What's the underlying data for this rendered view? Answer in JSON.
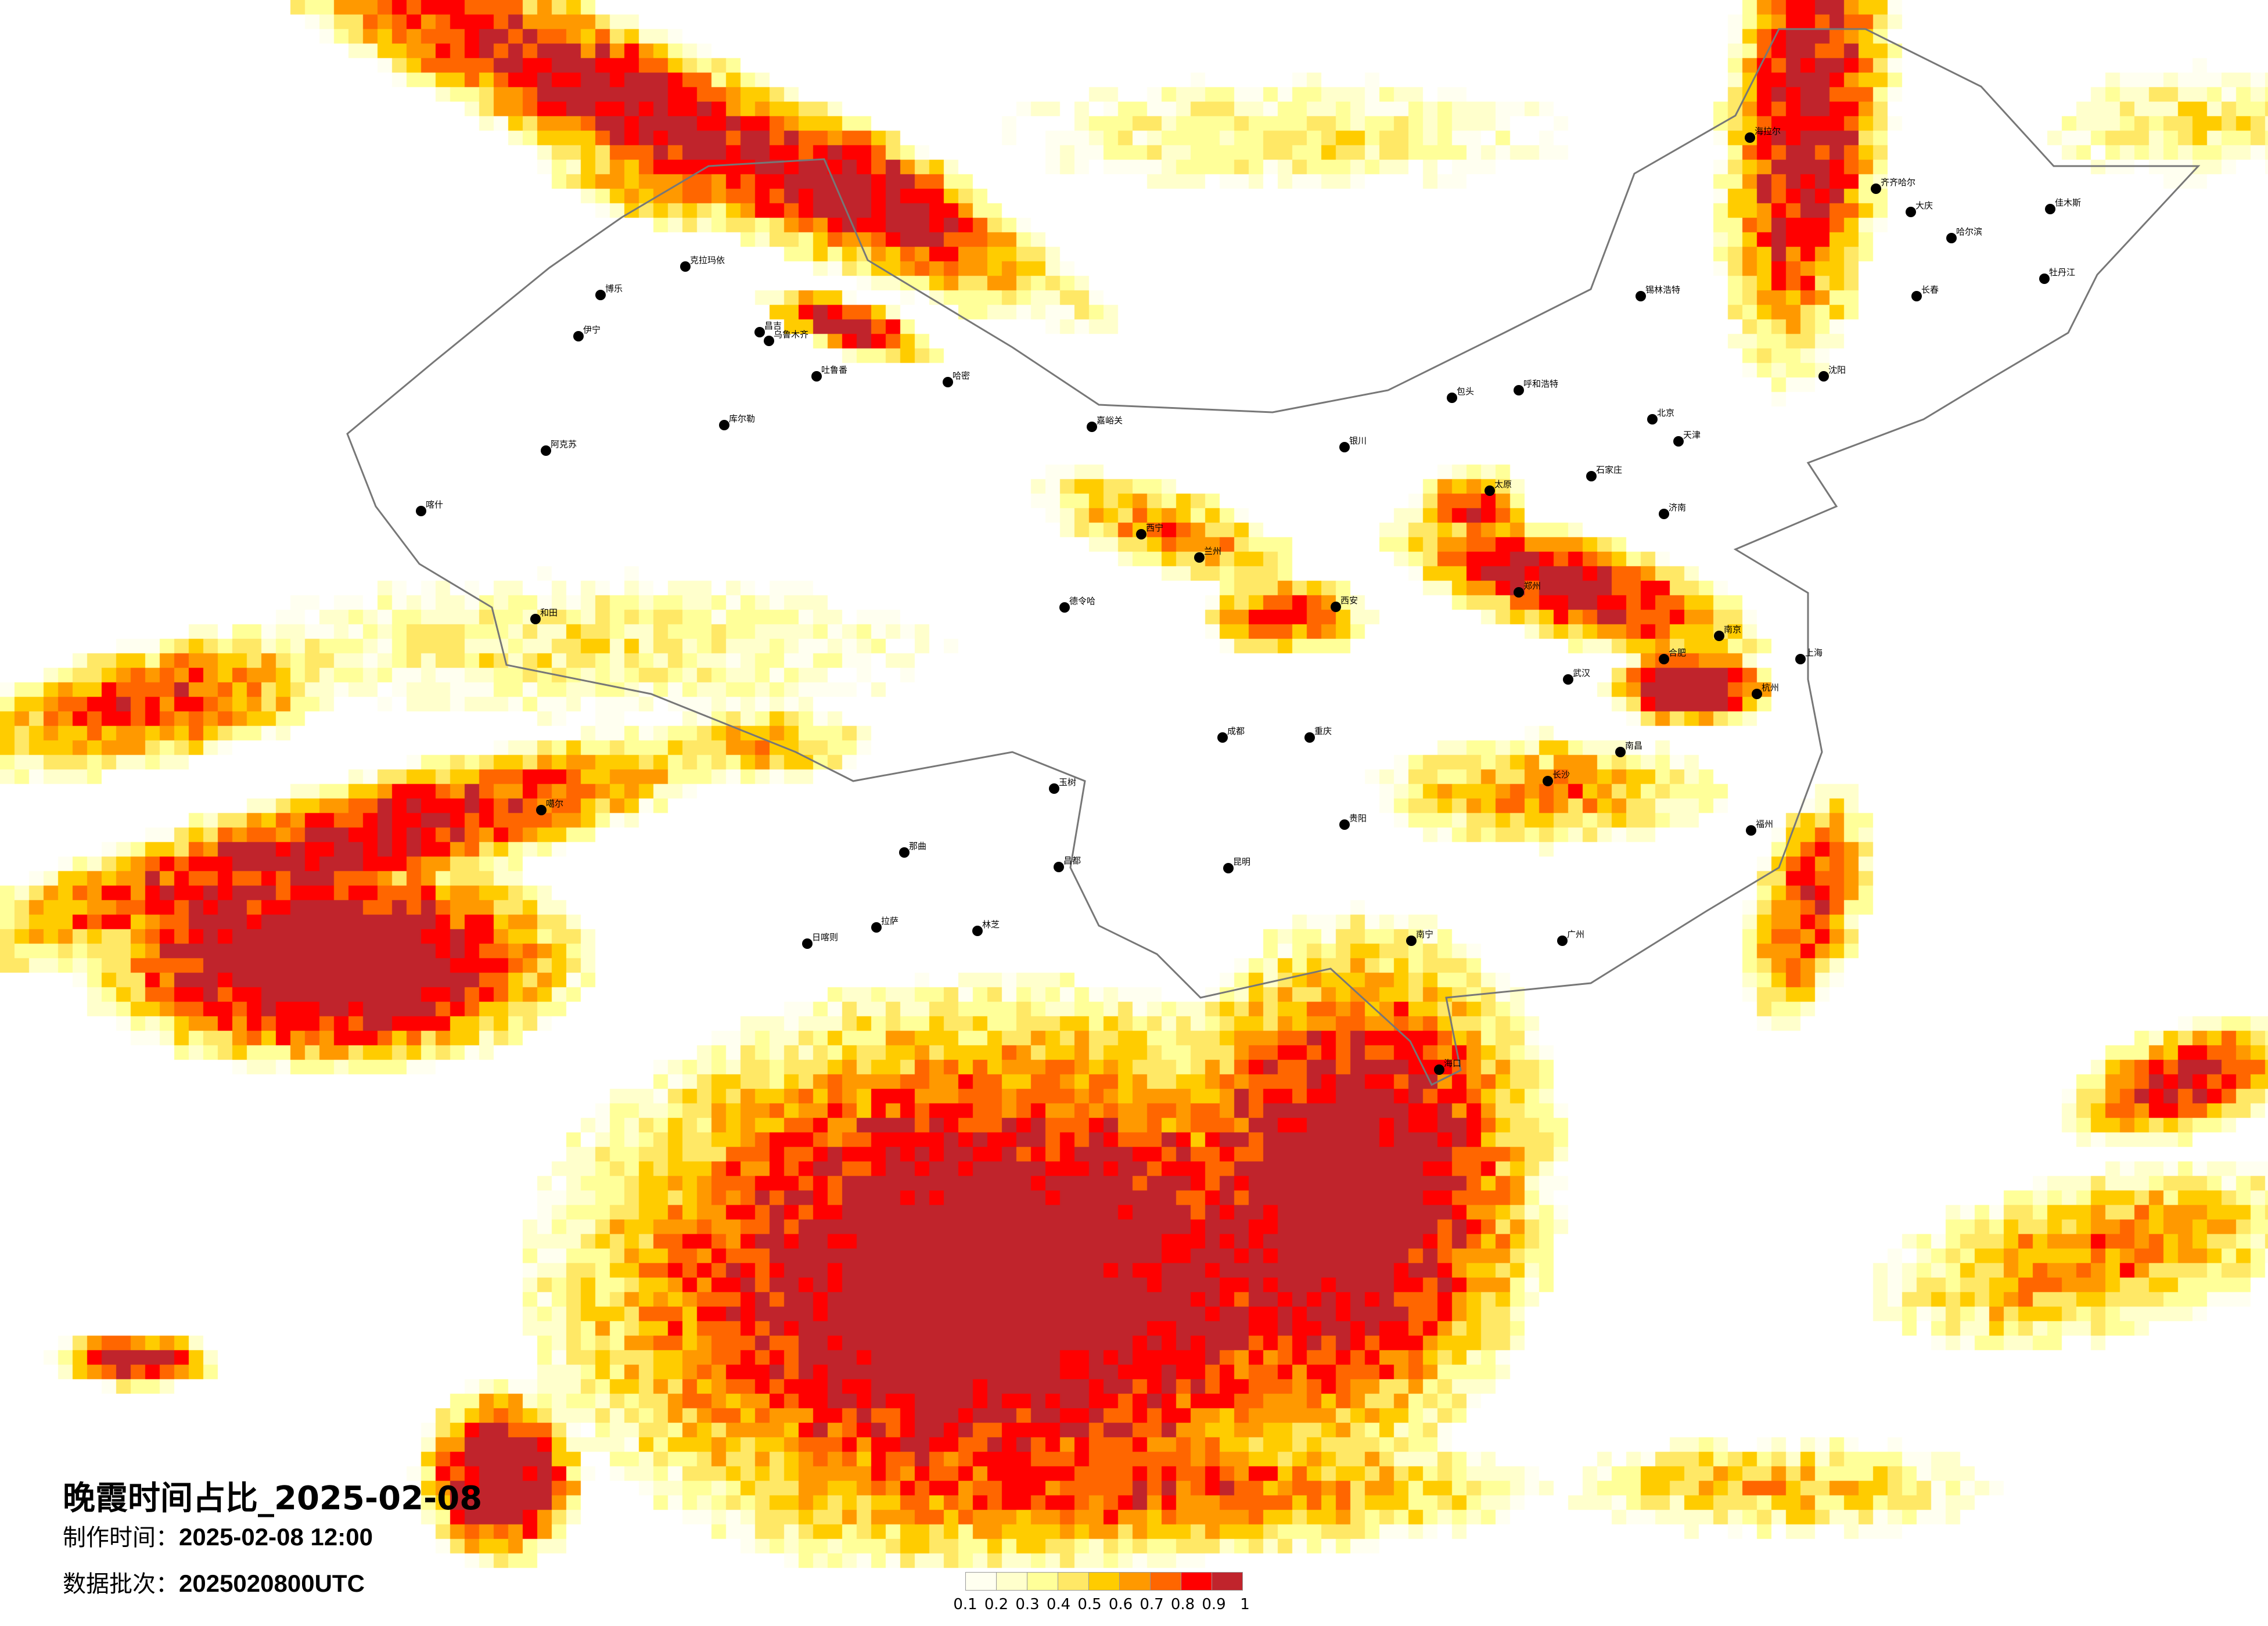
{
  "title": "晚霞时间占比_2025-02-08",
  "produced": {
    "label": "制作时间：",
    "value": "2025-02-08 12:00"
  },
  "batch": {
    "label": "数据批次：",
    "value": "2025020800UTC"
  },
  "legend": {
    "labels": [
      "0.1",
      "0.2",
      "0.3",
      "0.4",
      "0.5",
      "0.6",
      "0.7",
      "0.8",
      "0.9",
      "1"
    ],
    "colors": [
      "#FFFFF0",
      "#FFFFCC",
      "#FFFF99",
      "#FFE866",
      "#FFCC00",
      "#FF9900",
      "#FF6600",
      "#FF0000",
      "#C0242C"
    ]
  },
  "cities": [
    "克拉玛依",
    "博乐",
    "伊宁",
    "昌吉",
    "乌鲁木齐",
    "吐鲁番",
    "哈密",
    "库尔勒",
    "阿克苏",
    "喀什",
    "和田",
    "噶尔",
    "那曲",
    "昌都",
    "玉树",
    "德令哈",
    "日喀则",
    "拉萨",
    "林芝",
    "嘉峪关",
    "西宁",
    "兰州",
    "银川",
    "呼和浩特",
    "包头",
    "太原",
    "石家庄",
    "北京",
    "天津",
    "济南",
    "郑州",
    "西安",
    "成都",
    "重庆",
    "贵阳",
    "昆明",
    "南宁",
    "广州",
    "海口",
    "长沙",
    "武汉",
    "南昌",
    "合肥",
    "南京",
    "上海",
    "杭州",
    "福州",
    "沈阳",
    "长春",
    "哈尔滨",
    "海拉尔",
    "锡林浩特",
    "齐齐哈尔",
    "大庆",
    "佳木斯",
    "牡丹江"
  ]
}
